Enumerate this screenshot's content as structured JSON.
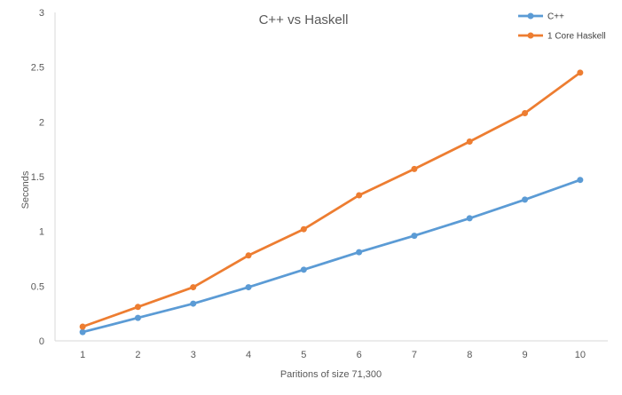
{
  "chart_data": {
    "type": "line",
    "title": "C++ vs Haskell",
    "xlabel": "Paritions of size 71,300",
    "ylabel": "Seconds",
    "categories": [
      "1",
      "2",
      "3",
      "4",
      "5",
      "6",
      "7",
      "8",
      "9",
      "10"
    ],
    "ylim": [
      0,
      3
    ],
    "yticks": [
      0,
      0.5,
      1,
      1.5,
      2,
      2.5,
      3
    ],
    "ytick_labels": [
      "0",
      "0.5",
      "1",
      "1.5",
      "2",
      "2.5",
      "3"
    ],
    "grid": false,
    "legend_position": "top-right",
    "series": [
      {
        "name": "C++",
        "color": "#5b9bd5",
        "values": [
          0.08,
          0.21,
          0.34,
          0.49,
          0.65,
          0.81,
          0.96,
          1.12,
          1.29,
          1.47
        ]
      },
      {
        "name": "1 Core Haskell",
        "color": "#ed7d31",
        "values": [
          0.13,
          0.31,
          0.49,
          0.78,
          1.02,
          1.33,
          1.57,
          1.82,
          2.08,
          2.45
        ]
      }
    ]
  }
}
